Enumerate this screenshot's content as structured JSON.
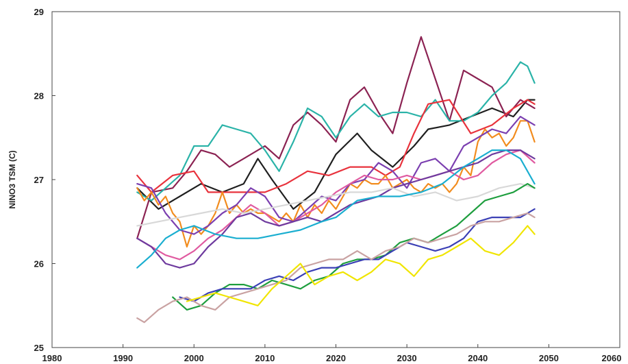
{
  "chart_data": {
    "type": "line",
    "title": "",
    "xlabel": "",
    "ylabel": "NINO3 TSM (C)",
    "xlim": [
      1980,
      2060
    ],
    "ylim": [
      25,
      29
    ],
    "xticks": [
      1980,
      1990,
      2000,
      2010,
      2020,
      2030,
      2040,
      2050,
      2060
    ],
    "yticks": [
      25,
      26,
      27,
      28,
      29
    ],
    "grid": false,
    "legend": "none",
    "series": [
      {
        "color": "#1f1f1f",
        "x": [
          1992,
          1995,
          1998,
          2001,
          2004,
          2007,
          2009,
          2011,
          2014,
          2017,
          2020,
          2023,
          2025,
          2028,
          2031,
          2033,
          2036,
          2039,
          2042,
          2045,
          2047,
          2048
        ],
        "values": [
          26.9,
          26.65,
          26.8,
          26.95,
          26.85,
          26.95,
          27.25,
          27.0,
          26.65,
          26.85,
          27.3,
          27.55,
          27.35,
          27.15,
          27.4,
          27.6,
          27.65,
          27.75,
          27.85,
          27.75,
          27.95,
          27.95
        ]
      },
      {
        "color": "#8b2252",
        "x": [
          1992,
          1994,
          1997,
          1999,
          2001,
          2003,
          2005,
          2007,
          2010,
          2012,
          2014,
          2016,
          2018,
          2020,
          2022,
          2024,
          2026,
          2028,
          2030,
          2032,
          2034,
          2036,
          2038,
          2040,
          2042,
          2044,
          2046,
          2048
        ],
        "values": [
          26.3,
          26.85,
          26.9,
          27.1,
          27.35,
          27.3,
          27.15,
          27.25,
          27.4,
          27.25,
          27.65,
          27.8,
          27.65,
          27.45,
          27.95,
          28.1,
          27.8,
          27.55,
          28.15,
          28.7,
          28.2,
          27.7,
          28.3,
          28.2,
          28.1,
          27.75,
          27.95,
          27.85
        ]
      },
      {
        "color": "#2ab3a8",
        "x": [
          1992,
          1994,
          1996,
          1998,
          2000,
          2002,
          2004,
          2006,
          2008,
          2010,
          2012,
          2014,
          2016,
          2018,
          2020,
          2022,
          2024,
          2026,
          2028,
          2030,
          2032,
          2034,
          2036,
          2038,
          2040,
          2042,
          2044,
          2046,
          2047,
          2048
        ],
        "values": [
          26.85,
          26.75,
          26.9,
          27.05,
          27.4,
          27.4,
          27.65,
          27.6,
          27.55,
          27.35,
          27.1,
          27.45,
          27.85,
          27.75,
          27.5,
          27.75,
          27.9,
          27.75,
          27.8,
          27.8,
          27.75,
          27.95,
          27.7,
          27.7,
          27.8,
          28.0,
          28.15,
          28.4,
          28.35,
          28.15
        ]
      },
      {
        "color": "#e8323c",
        "x": [
          1992,
          1994,
          1997,
          2000,
          2002,
          2005,
          2008,
          2010,
          2013,
          2016,
          2019,
          2022,
          2025,
          2027,
          2029,
          2031,
          2033,
          2036,
          2039,
          2042,
          2045,
          2047,
          2048
        ],
        "values": [
          27.05,
          26.85,
          27.05,
          27.1,
          26.85,
          26.85,
          26.85,
          26.85,
          26.95,
          27.1,
          27.05,
          27.15,
          27.15,
          27.05,
          27.15,
          27.55,
          27.9,
          27.95,
          27.55,
          27.65,
          27.85,
          27.95,
          27.9
        ]
      },
      {
        "color": "#f28c1e",
        "x": [
          1992,
          1993,
          1994,
          1995,
          1996,
          1997,
          1998,
          1999,
          2000,
          2001,
          2002,
          2003,
          2004,
          2005,
          2006,
          2007,
          2008,
          2009,
          2010,
          2011,
          2012,
          2013,
          2014,
          2015,
          2016,
          2017,
          2018,
          2019,
          2020,
          2021,
          2022,
          2023,
          2024,
          2025,
          2026,
          2027,
          2028,
          2029,
          2030,
          2031,
          2032,
          2033,
          2034,
          2035,
          2036,
          2037,
          2038,
          2039,
          2040,
          2041,
          2042,
          2043,
          2044,
          2045,
          2046,
          2047,
          2048
        ],
        "values": [
          26.9,
          26.75,
          26.85,
          26.7,
          26.8,
          26.6,
          26.5,
          26.2,
          26.45,
          26.35,
          26.45,
          26.6,
          26.85,
          26.6,
          26.7,
          26.6,
          26.65,
          26.6,
          26.6,
          26.55,
          26.5,
          26.6,
          26.5,
          26.7,
          26.55,
          26.7,
          26.6,
          26.75,
          26.65,
          26.8,
          26.95,
          26.9,
          27.0,
          26.95,
          26.95,
          27.05,
          26.9,
          26.95,
          27.0,
          26.9,
          26.85,
          26.95,
          26.9,
          26.95,
          26.85,
          26.95,
          27.15,
          27.05,
          27.45,
          27.6,
          27.5,
          27.55,
          27.4,
          27.5,
          27.7,
          27.7,
          27.45
        ]
      },
      {
        "color": "#7b3fb0",
        "x": [
          1992,
          1994,
          1996,
          1998,
          2000,
          2002,
          2004,
          2006,
          2008,
          2010,
          2012,
          2014,
          2016,
          2018,
          2020,
          2022,
          2024,
          2026,
          2028,
          2030,
          2032,
          2034,
          2036,
          2038,
          2040,
          2042,
          2044,
          2046,
          2048
        ],
        "values": [
          26.95,
          26.9,
          26.6,
          26.4,
          26.35,
          26.45,
          26.6,
          26.7,
          26.9,
          26.8,
          26.55,
          26.5,
          26.65,
          26.8,
          26.75,
          26.95,
          27.0,
          27.2,
          27.1,
          26.9,
          27.2,
          27.25,
          27.1,
          27.4,
          27.5,
          27.6,
          27.55,
          27.75,
          27.65
        ]
      },
      {
        "color": "#e05aa0",
        "x": [
          1992,
          1994,
          1996,
          1998,
          2000,
          2002,
          2004,
          2006,
          2008,
          2010,
          2012,
          2014,
          2016,
          2018,
          2020,
          2022,
          2024,
          2026,
          2028,
          2030,
          2032,
          2034,
          2036,
          2038,
          2040,
          2042,
          2044,
          2046,
          2048
        ],
        "values": [
          26.3,
          26.2,
          26.1,
          26.05,
          26.15,
          26.3,
          26.4,
          26.55,
          26.7,
          26.6,
          26.45,
          26.5,
          26.6,
          26.7,
          26.85,
          26.95,
          27.05,
          27.0,
          27.0,
          27.05,
          27.0,
          27.05,
          27.1,
          27.0,
          27.05,
          27.2,
          27.3,
          27.35,
          27.2
        ]
      },
      {
        "color": "#6e3a9e",
        "x": [
          1992,
          1994,
          1996,
          1998,
          2000,
          2002,
          2004,
          2006,
          2008,
          2010,
          2012,
          2014,
          2016,
          2018,
          2020,
          2022,
          2024,
          2026,
          2028,
          2030,
          2032,
          2034,
          2036,
          2038,
          2040,
          2042,
          2044,
          2046,
          2048
        ],
        "values": [
          26.3,
          26.2,
          26.0,
          25.95,
          26.0,
          26.2,
          26.35,
          26.55,
          26.6,
          26.5,
          26.45,
          26.5,
          26.55,
          26.5,
          26.6,
          26.7,
          26.75,
          26.8,
          26.9,
          26.95,
          27.0,
          27.05,
          27.1,
          27.15,
          27.2,
          27.3,
          27.35,
          27.35,
          27.25
        ]
      },
      {
        "color": "#d8d8d8",
        "x": [
          1992,
          1995,
          1998,
          2001,
          2004,
          2007,
          2010,
          2013,
          2016,
          2019,
          2022,
          2025,
          2028,
          2031,
          2034,
          2037,
          2040,
          2043,
          2046,
          2048
        ],
        "values": [
          26.45,
          26.5,
          26.55,
          26.6,
          26.65,
          26.6,
          26.65,
          26.7,
          26.75,
          26.8,
          26.85,
          26.85,
          26.9,
          26.8,
          26.85,
          26.75,
          26.8,
          26.9,
          26.95,
          26.9
        ]
      },
      {
        "color": "#1aaed0",
        "x": [
          1992,
          1994,
          1996,
          1998,
          2000,
          2003,
          2006,
          2009,
          2012,
          2015,
          2018,
          2020,
          2023,
          2026,
          2029,
          2032,
          2035,
          2038,
          2040,
          2042,
          2044,
          2046,
          2048
        ],
        "values": [
          25.95,
          26.1,
          26.3,
          26.4,
          26.45,
          26.35,
          26.3,
          26.3,
          26.35,
          26.4,
          26.5,
          26.55,
          26.75,
          26.8,
          26.8,
          26.85,
          26.95,
          27.15,
          27.25,
          27.35,
          27.35,
          27.25,
          26.95
        ]
      },
      {
        "color": "#1e9e3e",
        "x": [
          1997,
          1999,
          2001,
          2003,
          2005,
          2007,
          2009,
          2011,
          2013,
          2015,
          2017,
          2019,
          2021,
          2023,
          2025,
          2027,
          2029,
          2031,
          2033,
          2035,
          2037,
          2039,
          2041,
          2043,
          2045,
          2047,
          2048
        ],
        "values": [
          25.6,
          25.45,
          25.5,
          25.65,
          25.75,
          25.75,
          25.7,
          25.8,
          25.75,
          25.7,
          25.8,
          25.85,
          26.0,
          26.05,
          26.05,
          26.1,
          26.25,
          26.3,
          26.25,
          26.35,
          26.45,
          26.6,
          26.75,
          26.8,
          26.85,
          26.95,
          26.9
        ]
      },
      {
        "color": "#3a3fb5",
        "x": [
          1998,
          2000,
          2002,
          2004,
          2006,
          2008,
          2010,
          2012,
          2014,
          2016,
          2018,
          2020,
          2022,
          2024,
          2026,
          2028,
          2030,
          2032,
          2034,
          2036,
          2038,
          2040,
          2042,
          2044,
          2046,
          2048
        ],
        "values": [
          25.6,
          25.55,
          25.65,
          25.7,
          25.7,
          25.7,
          25.8,
          25.85,
          25.8,
          25.9,
          25.95,
          25.95,
          26.0,
          26.05,
          26.05,
          26.15,
          26.25,
          26.2,
          26.15,
          26.2,
          26.3,
          26.5,
          26.55,
          26.55,
          26.55,
          26.65
        ]
      },
      {
        "color": "#c9a2a2",
        "x": [
          1992,
          1993,
          1995,
          1997,
          1999,
          2001,
          2003,
          2005,
          2007,
          2009,
          2011,
          2013,
          2015,
          2017,
          2019,
          2021,
          2023,
          2025,
          2027,
          2029,
          2031,
          2033,
          2035,
          2037,
          2039,
          2041,
          2043,
          2045,
          2047,
          2048
        ],
        "values": [
          25.35,
          25.3,
          25.45,
          25.55,
          25.6,
          25.5,
          25.45,
          25.6,
          25.65,
          25.7,
          25.75,
          25.8,
          25.95,
          26.0,
          26.05,
          26.05,
          26.15,
          26.05,
          26.15,
          26.2,
          26.3,
          26.25,
          26.3,
          26.35,
          26.45,
          26.5,
          26.5,
          26.55,
          26.6,
          26.55
        ]
      },
      {
        "color": "#f0e500",
        "x": [
          1999,
          2001,
          2003,
          2005,
          2007,
          2009,
          2011,
          2013,
          2015,
          2017,
          2019,
          2021,
          2023,
          2025,
          2027,
          2029,
          2031,
          2033,
          2035,
          2037,
          2039,
          2041,
          2043,
          2045,
          2047,
          2048
        ],
        "values": [
          25.55,
          25.6,
          25.65,
          25.6,
          25.55,
          25.5,
          25.7,
          25.85,
          26.0,
          25.75,
          25.85,
          25.9,
          25.8,
          25.9,
          26.05,
          26.0,
          25.85,
          26.05,
          26.1,
          26.2,
          26.3,
          26.15,
          26.1,
          26.25,
          26.45,
          26.35
        ]
      }
    ]
  }
}
